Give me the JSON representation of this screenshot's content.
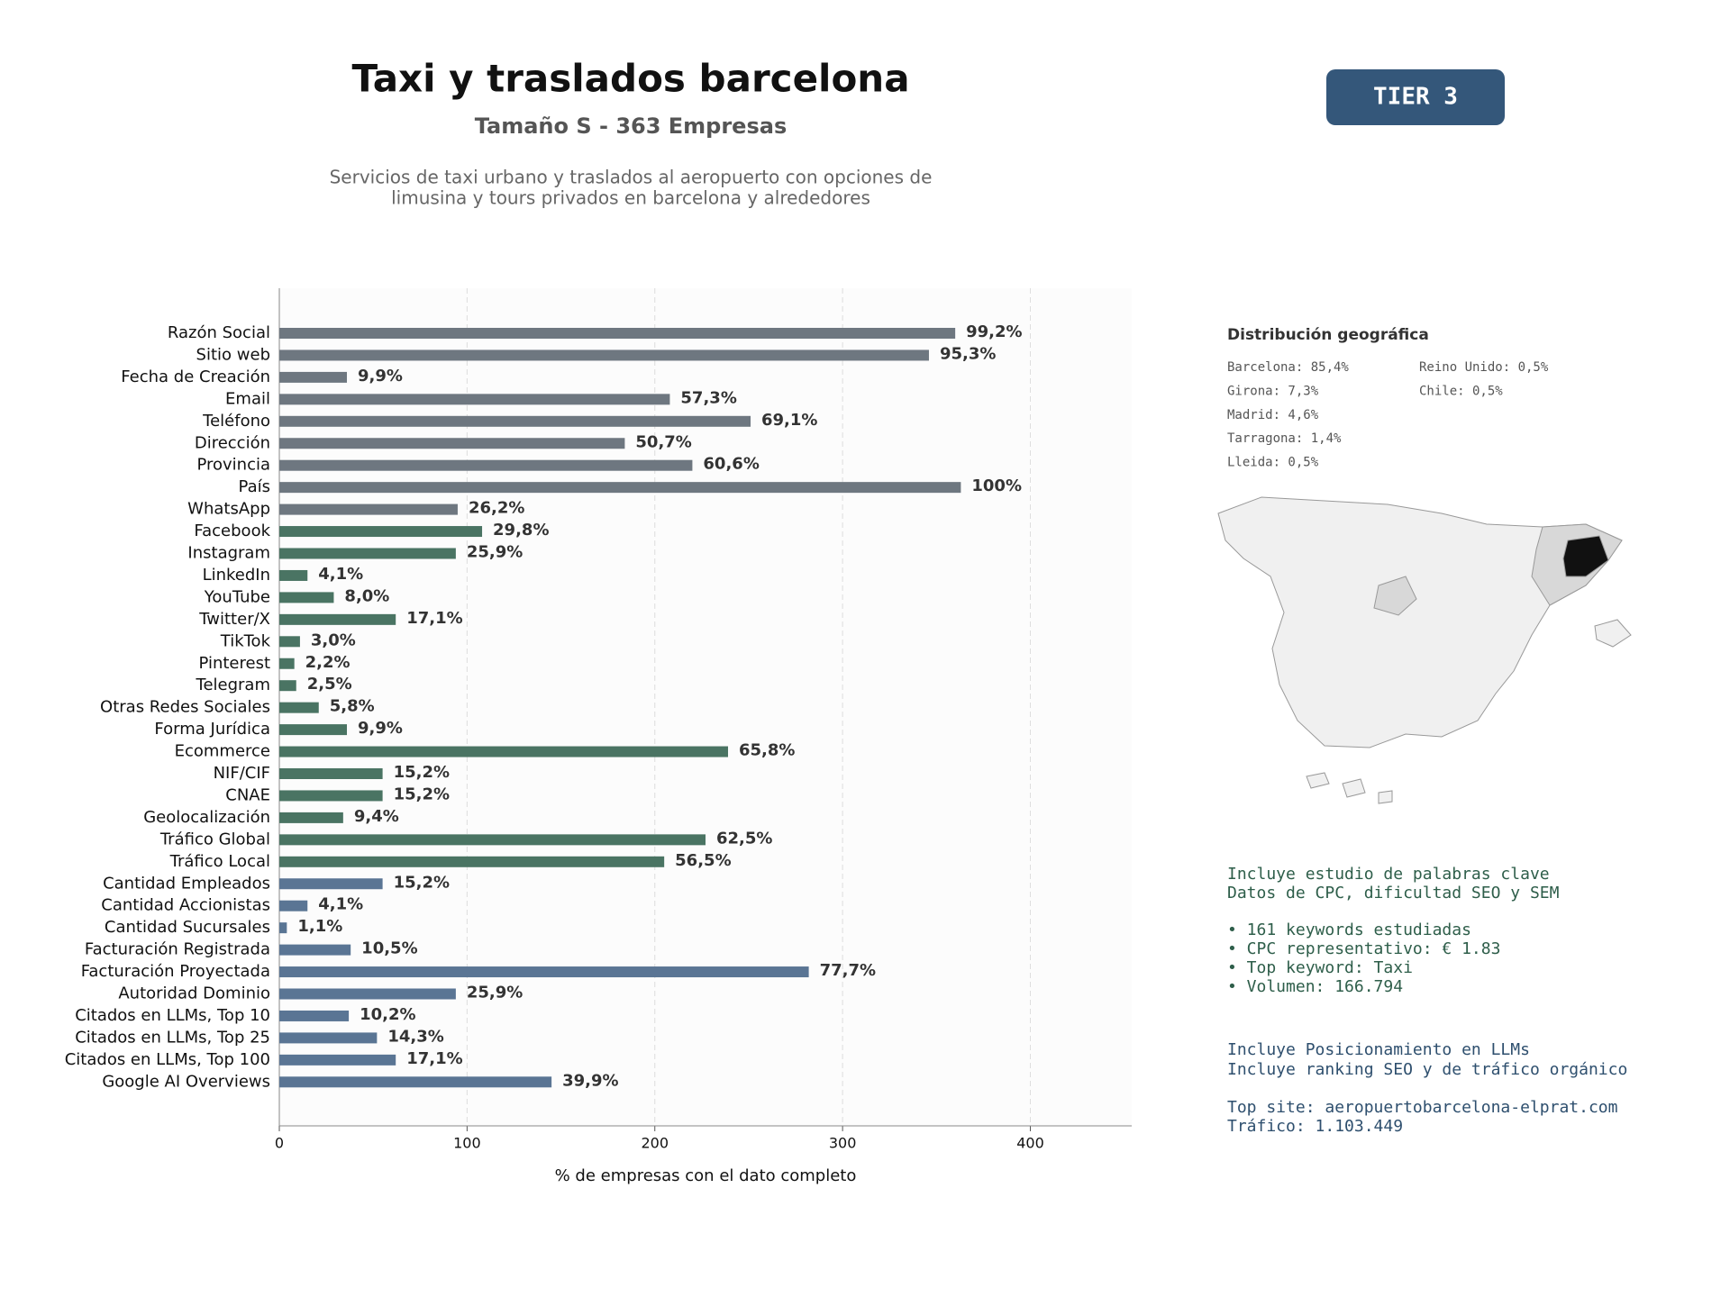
{
  "header": {
    "title": "Taxi y traslados barcelona",
    "subtitle": "Tamaño S - 363 Empresas",
    "description": [
      "Servicios de taxi urbano y traslados al aeropuerto con opciones de",
      "limusina y tours privados en barcelona y alrededores"
    ],
    "badge": "TIER 3"
  },
  "chart_data": {
    "type": "barh",
    "categories": [
      "Razón Social",
      "Sitio web",
      "Fecha de Creación",
      "Email",
      "Teléfono",
      "Dirección",
      "Provincia",
      "País",
      "WhatsApp",
      "Facebook",
      "Instagram",
      "LinkedIn",
      "YouTube",
      "Twitter/X",
      "TikTok",
      "Pinterest",
      "Telegram",
      "Otras Redes Sociales",
      "Forma Jurídica",
      "Ecommerce",
      "NIF/CIF",
      "CNAE",
      "Geolocalización",
      "Tráfico Global",
      "Tráfico Local",
      "Cantidad Empleados",
      "Cantidad Accionistas",
      "Cantidad Sucursales",
      "Facturación Registrada",
      "Facturación Proyectada",
      "Autoridad Dominio",
      "Citados en LLMs, Top 10",
      "Citados en LLMs, Top 25",
      "Citados en LLMs, Top 100",
      "Google AI Overviews"
    ],
    "values": [
      360,
      346,
      36,
      208,
      251,
      184,
      220,
      363,
      95,
      108,
      94,
      15,
      29,
      62,
      11,
      8,
      9,
      21,
      36,
      239,
      55,
      55,
      34,
      227,
      205,
      55,
      15,
      4,
      38,
      282,
      94,
      37,
      52,
      62,
      145
    ],
    "value_labels": [
      "99,2%",
      "95,3%",
      "9,9%",
      "57,3%",
      "69,1%",
      "50,7%",
      "60,6%",
      "100%",
      "26,2%",
      "29,8%",
      "25,9%",
      "4,1%",
      "8,0%",
      "17,1%",
      "3,0%",
      "2,2%",
      "2,5%",
      "5,8%",
      "9,9%",
      "65,8%",
      "15,2%",
      "15,2%",
      "9,4%",
      "62,5%",
      "56,5%",
      "15,2%",
      "4,1%",
      "1,1%",
      "10,5%",
      "77,7%",
      "25,9%",
      "10,2%",
      "14,3%",
      "17,1%",
      "39,9%"
    ],
    "colors": [
      "#6e7780",
      "#6e7780",
      "#6e7780",
      "#6e7780",
      "#6e7780",
      "#6e7780",
      "#6e7780",
      "#6e7780",
      "#6e7780",
      "#4a7463",
      "#4a7463",
      "#4a7463",
      "#4a7463",
      "#4a7463",
      "#4a7463",
      "#4a7463",
      "#4a7463",
      "#4a7463",
      "#4a7463",
      "#4a7463",
      "#4a7463",
      "#4a7463",
      "#4a7463",
      "#4a7463",
      "#4a7463",
      "#5a7594",
      "#5a7594",
      "#5a7594",
      "#5a7594",
      "#5a7594",
      "#5a7594",
      "#5a7594",
      "#5a7594",
      "#5a7594",
      "#5a7594"
    ],
    "xlim": [
      0,
      454
    ],
    "xticks": [
      0,
      100,
      200,
      300,
      400
    ],
    "xlabel": "% de empresas con el dato completo",
    "grid": true
  },
  "panel": {
    "geo_title": "Distribución geográfica",
    "geo": [
      [
        "Barcelona: 85,4%",
        "Girona: 7,3%",
        "Madrid: 4,6%",
        "Tarragona: 1,4%",
        "Lleida: 0,5%"
      ],
      [
        "Reino Unido: 0,5%",
        "Chile: 0,5%"
      ]
    ],
    "notes": [
      [
        "Incluye estudio de palabras clave",
        "Datos de CPC, dificultad SEO y SEM"
      ],
      [
        "• 161 keywords estudiadas",
        "• CPC representativo: € 1.83",
        "• Top keyword: Taxi",
        "• Volumen: 166.794"
      ],
      [
        "Incluye Posicionamiento en LLMs",
        "Incluye ranking SEO y de tráfico orgánico"
      ],
      [
        "Top site: aeropuertobarcelona-elprat.com",
        "Tráfico: 1.103.449"
      ]
    ]
  }
}
